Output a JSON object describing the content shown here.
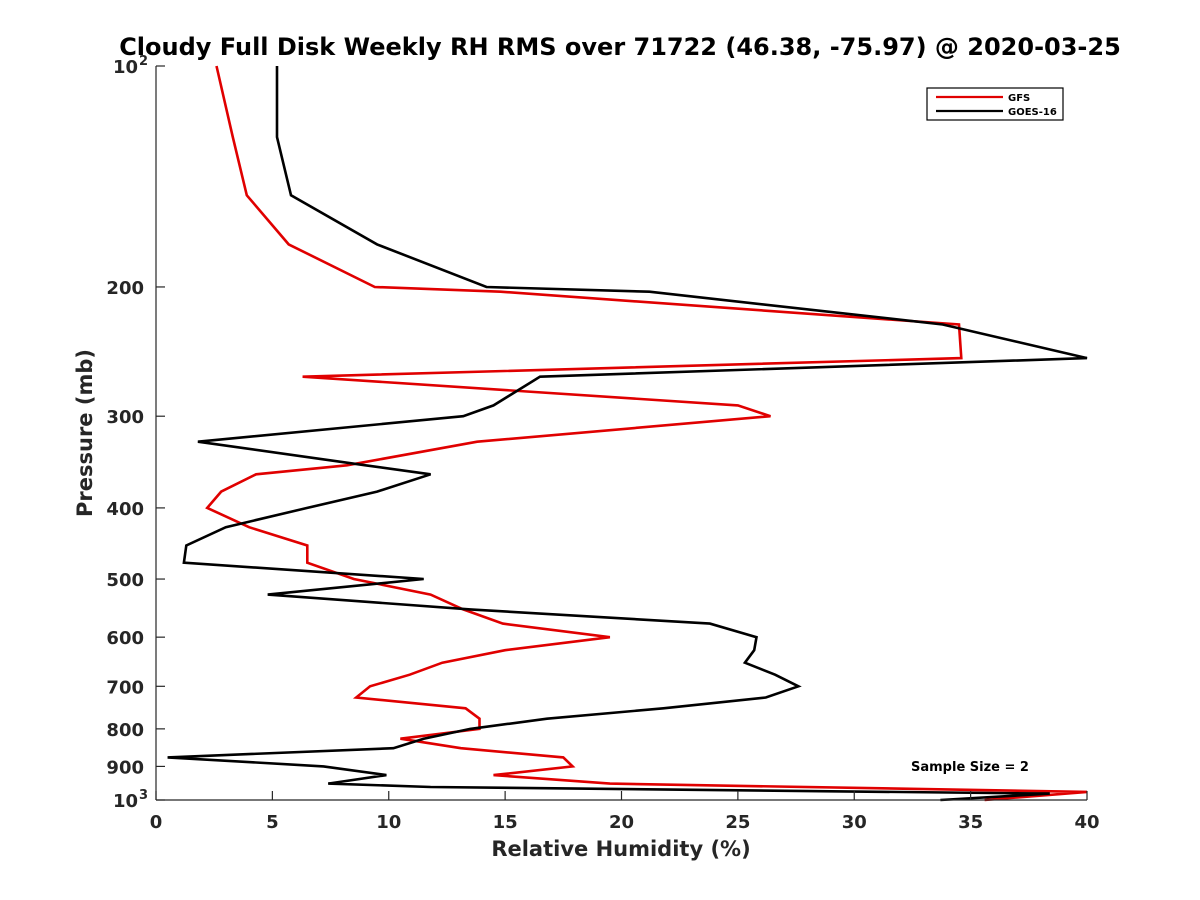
{
  "chart_data": {
    "type": "line",
    "title": "Cloudy Full Disk Weekly RH RMS over 71722 (46.38, -75.97) @ 2020-03-25",
    "xlabel": "Relative Humidity (%)",
    "ylabel": "Pressure (mb)",
    "xlim": [
      0,
      40
    ],
    "ylim": [
      100,
      1000
    ],
    "yscale": "log",
    "yreversed": true,
    "x_ticks": [
      "0",
      "5",
      "10",
      "15",
      "20",
      "25",
      "30",
      "35",
      "40"
    ],
    "y_ticks": [
      {
        "value": 100,
        "label": "10",
        "sup": "2"
      },
      {
        "value": 200,
        "label": "200",
        "sup": ""
      },
      {
        "value": 300,
        "label": "300",
        "sup": ""
      },
      {
        "value": 400,
        "label": "400",
        "sup": ""
      },
      {
        "value": 500,
        "label": "500",
        "sup": ""
      },
      {
        "value": 600,
        "label": "600",
        "sup": ""
      },
      {
        "value": 700,
        "label": "700",
        "sup": ""
      },
      {
        "value": 800,
        "label": "800",
        "sup": ""
      },
      {
        "value": 900,
        "label": "900",
        "sup": ""
      },
      {
        "value": 1000,
        "label": "10",
        "sup": "3"
      }
    ],
    "legend_position": "top-right",
    "annotation": "Sample Size = 2",
    "series": [
      {
        "name": "GFS",
        "color": "#e00000",
        "points": [
          [
            2.6,
            100
          ],
          [
            3.3,
            125
          ],
          [
            3.9,
            150
          ],
          [
            5.7,
            175
          ],
          [
            9.4,
            200
          ],
          [
            14.8,
            203
          ],
          [
            34.5,
            225
          ],
          [
            34.6,
            250
          ],
          [
            6.3,
            265
          ],
          [
            25.0,
            290
          ],
          [
            26.4,
            300
          ],
          [
            13.8,
            325
          ],
          [
            8.2,
            350
          ],
          [
            4.3,
            360
          ],
          [
            2.8,
            380
          ],
          [
            2.2,
            400
          ],
          [
            4.0,
            425
          ],
          [
            6.5,
            450
          ],
          [
            6.5,
            475
          ],
          [
            8.5,
            500
          ],
          [
            11.8,
            525
          ],
          [
            13.2,
            550
          ],
          [
            14.9,
            575
          ],
          [
            19.5,
            600
          ],
          [
            15.0,
            625
          ],
          [
            12.3,
            650
          ],
          [
            10.9,
            675
          ],
          [
            9.2,
            700
          ],
          [
            8.6,
            725
          ],
          [
            13.3,
            750
          ],
          [
            13.9,
            775
          ],
          [
            13.9,
            800
          ],
          [
            10.5,
            825
          ],
          [
            13.1,
            850
          ],
          [
            17.5,
            875
          ],
          [
            17.9,
            900
          ],
          [
            14.5,
            925
          ],
          [
            19.5,
            950
          ],
          [
            40.0,
            975
          ],
          [
            35.6,
            1000
          ]
        ]
      },
      {
        "name": "GOES-16",
        "color": "#000000",
        "points": [
          [
            5.2,
            100
          ],
          [
            5.2,
            125
          ],
          [
            5.8,
            150
          ],
          [
            9.5,
            175
          ],
          [
            14.2,
            200
          ],
          [
            21.2,
            203
          ],
          [
            33.8,
            225
          ],
          [
            40.0,
            250
          ],
          [
            16.5,
            265
          ],
          [
            14.5,
            290
          ],
          [
            13.2,
            300
          ],
          [
            1.8,
            325
          ],
          [
            9.0,
            350
          ],
          [
            11.8,
            360
          ],
          [
            9.5,
            380
          ],
          [
            6.5,
            400
          ],
          [
            3.0,
            425
          ],
          [
            1.3,
            450
          ],
          [
            1.2,
            475
          ],
          [
            11.5,
            500
          ],
          [
            4.8,
            525
          ],
          [
            13.5,
            550
          ],
          [
            23.8,
            575
          ],
          [
            25.8,
            600
          ],
          [
            25.7,
            625
          ],
          [
            25.3,
            650
          ],
          [
            26.6,
            675
          ],
          [
            27.6,
            700
          ],
          [
            26.2,
            725
          ],
          [
            21.8,
            750
          ],
          [
            16.8,
            775
          ],
          [
            13.5,
            800
          ],
          [
            11.5,
            825
          ],
          [
            10.2,
            850
          ],
          [
            0.5,
            875
          ],
          [
            7.2,
            900
          ],
          [
            9.9,
            925
          ],
          [
            7.4,
            950
          ],
          [
            11.8,
            960
          ],
          [
            38.4,
            980
          ],
          [
            33.7,
            1000
          ]
        ]
      }
    ]
  }
}
